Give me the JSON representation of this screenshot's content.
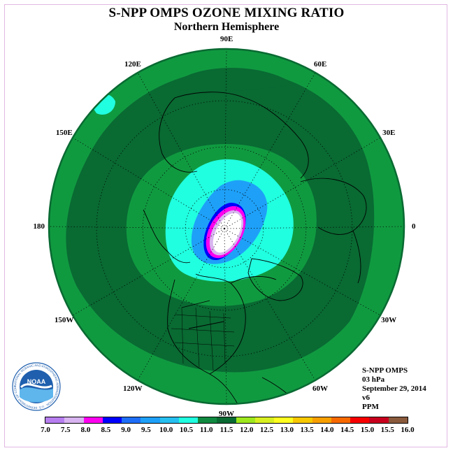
{
  "title": "S-NPP OMPS OZONE MIXING RATIO",
  "subtitle": "Northern Hemisphere",
  "longitude_labels": [
    {
      "text": "90E",
      "lon": 90
    },
    {
      "text": "60E",
      "lon": 60
    },
    {
      "text": "30E",
      "lon": 30
    },
    {
      "text": "0",
      "lon": 0
    },
    {
      "text": "30W",
      "lon": -30
    },
    {
      "text": "60W",
      "lon": -60
    },
    {
      "text": "90W",
      "lon": -90
    },
    {
      "text": "120W",
      "lon": -120
    },
    {
      "text": "150W",
      "lon": -150
    },
    {
      "text": "180",
      "lon": 180
    },
    {
      "text": "150E",
      "lon": 150
    },
    {
      "text": "120E",
      "lon": 120
    }
  ],
  "info": {
    "instrument": "S-NPP OMPS",
    "level": "03 hPa",
    "date": "September 29, 2014",
    "version": "v6",
    "units": "PPM"
  },
  "logo": {
    "text": "NOAA",
    "ring_text": "NATIONAL OCEANIC AND ATMOSPHERIC ADMINISTRATION · U.S. DEPARTMENT OF COMMERCE"
  },
  "colorbar": {
    "labels": [
      "7.0",
      "7.5",
      "8.0",
      "8.5",
      "9.0",
      "9.5",
      "10.0",
      "10.5",
      "11.0",
      "11.5",
      "12.0",
      "12.5",
      "13.0",
      "13.5",
      "14.0",
      "14.5",
      "15.0",
      "15.5",
      "16.0"
    ],
    "colors": [
      "#b77ef0",
      "#d8b4f0",
      "#ff00f0",
      "#0000ff",
      "#1e6ef8",
      "#1ea0f8",
      "#26c0f0",
      "#20ffe0",
      "#108a40",
      "#096a32",
      "#9ee81e",
      "#d8f020",
      "#ffff20",
      "#f8c800",
      "#f8a000",
      "#f86a00",
      "#f80000",
      "#c8001e",
      "#8a5a3c"
    ]
  },
  "map_colors": {
    "background_green": "#109a40",
    "dark_green": "#096a32",
    "cyan": "#20ffe0",
    "light_blue": "#1ea0f8",
    "blue": "#0000ff",
    "magenta": "#ff00f0",
    "lavender": "#d8b4f0",
    "white": "#ffffff"
  }
}
